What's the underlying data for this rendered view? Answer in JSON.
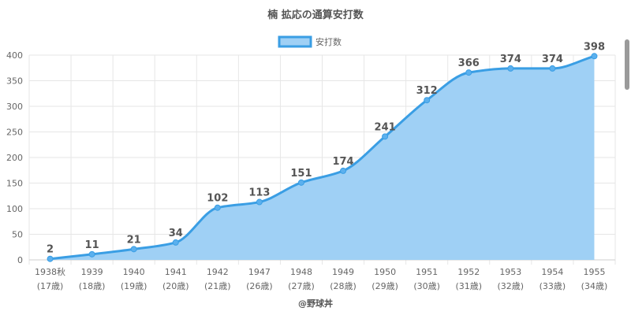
{
  "chart_data": {
    "type": "area",
    "title": "楠 拡応の通算安打数",
    "legend": {
      "label": "安打数",
      "position": "top"
    },
    "categories": [
      "1938秋",
      "1939",
      "1940",
      "1941",
      "1942",
      "1947",
      "1948",
      "1949",
      "1950",
      "1951",
      "1952",
      "1953",
      "1954",
      "1955"
    ],
    "sub_labels": [
      "(17歳)",
      "(18歳)",
      "(19歳)",
      "(20歳)",
      "(21歳)",
      "(26歳)",
      "(27歳)",
      "(28歳)",
      "(29歳)",
      "(30歳)",
      "(31歳)",
      "(32歳)",
      "(33歳)",
      "(34歳)"
    ],
    "series": [
      {
        "name": "安打数",
        "values": [
          2,
          11,
          21,
          34,
          102,
          113,
          151,
          174,
          241,
          312,
          366,
          374,
          374,
          398
        ]
      }
    ],
    "ylim": [
      0,
      400
    ],
    "yticks": [
      0,
      50,
      100,
      150,
      200,
      250,
      300,
      350,
      400
    ],
    "grid": true,
    "colors": {
      "line": "#3a9ee4",
      "fill": "#9fd0f5",
      "grid": "#e6e6e6"
    }
  },
  "credit": "@野球丼"
}
